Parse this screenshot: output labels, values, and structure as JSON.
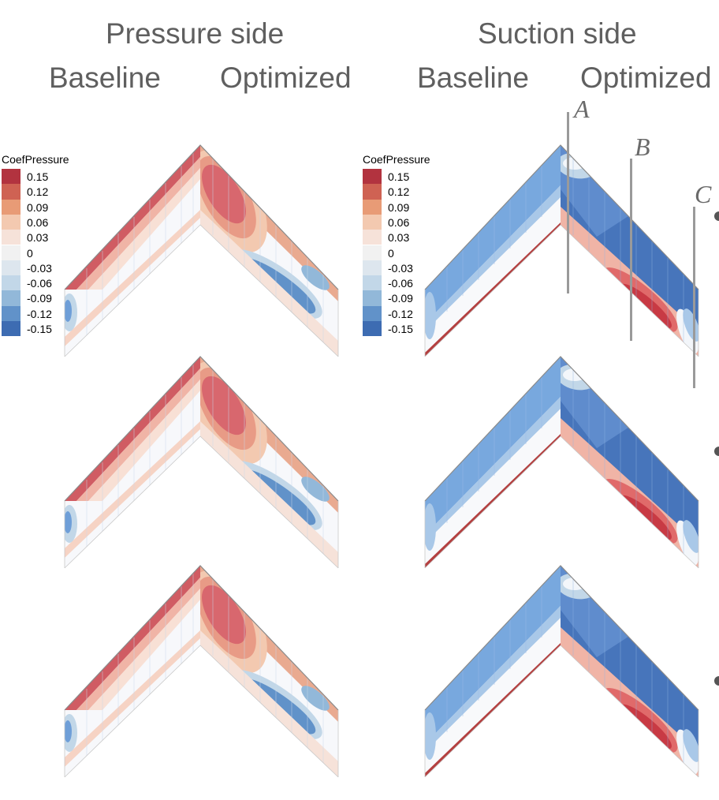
{
  "headers": {
    "pressure_side": "Pressure side",
    "suction_side": "Suction side",
    "baseline_1": "Baseline",
    "optimized_1": "Optimized",
    "baseline_2": "Baseline",
    "optimized_2": "Optimized"
  },
  "legend": {
    "title": "CoefPressure",
    "items": [
      {
        "label": "0.15",
        "color": "#b2333f"
      },
      {
        "label": "0.12",
        "color": "#cf6253"
      },
      {
        "label": "0.09",
        "color": "#e89b76"
      },
      {
        "label": "0.06",
        "color": "#f3c9b0"
      },
      {
        "label": "0.03",
        "color": "#f6e2d9"
      },
      {
        "label": "0",
        "color": "#f1f1f1"
      },
      {
        "label": "-0.03",
        "color": "#dde6ee"
      },
      {
        "label": "-0.06",
        "color": "#c2d7e8"
      },
      {
        "label": "-0.09",
        "color": "#92b8d9"
      },
      {
        "label": "-0.12",
        "color": "#6192c9"
      },
      {
        "label": "-0.15",
        "color": "#3d6cb2"
      }
    ]
  },
  "sections": [
    "A",
    "B",
    "C"
  ],
  "colors": {
    "header_text": "#5f5f5f",
    "deep_red": "#cc4b56",
    "light_red": "#f0b4a6",
    "white_zone": "#f7f8fb",
    "light_blue": "#a9c8e8",
    "mid_blue": "#6f9fd8",
    "deep_blue": "#3f6db6",
    "section_line": "#9a9a9a"
  }
}
